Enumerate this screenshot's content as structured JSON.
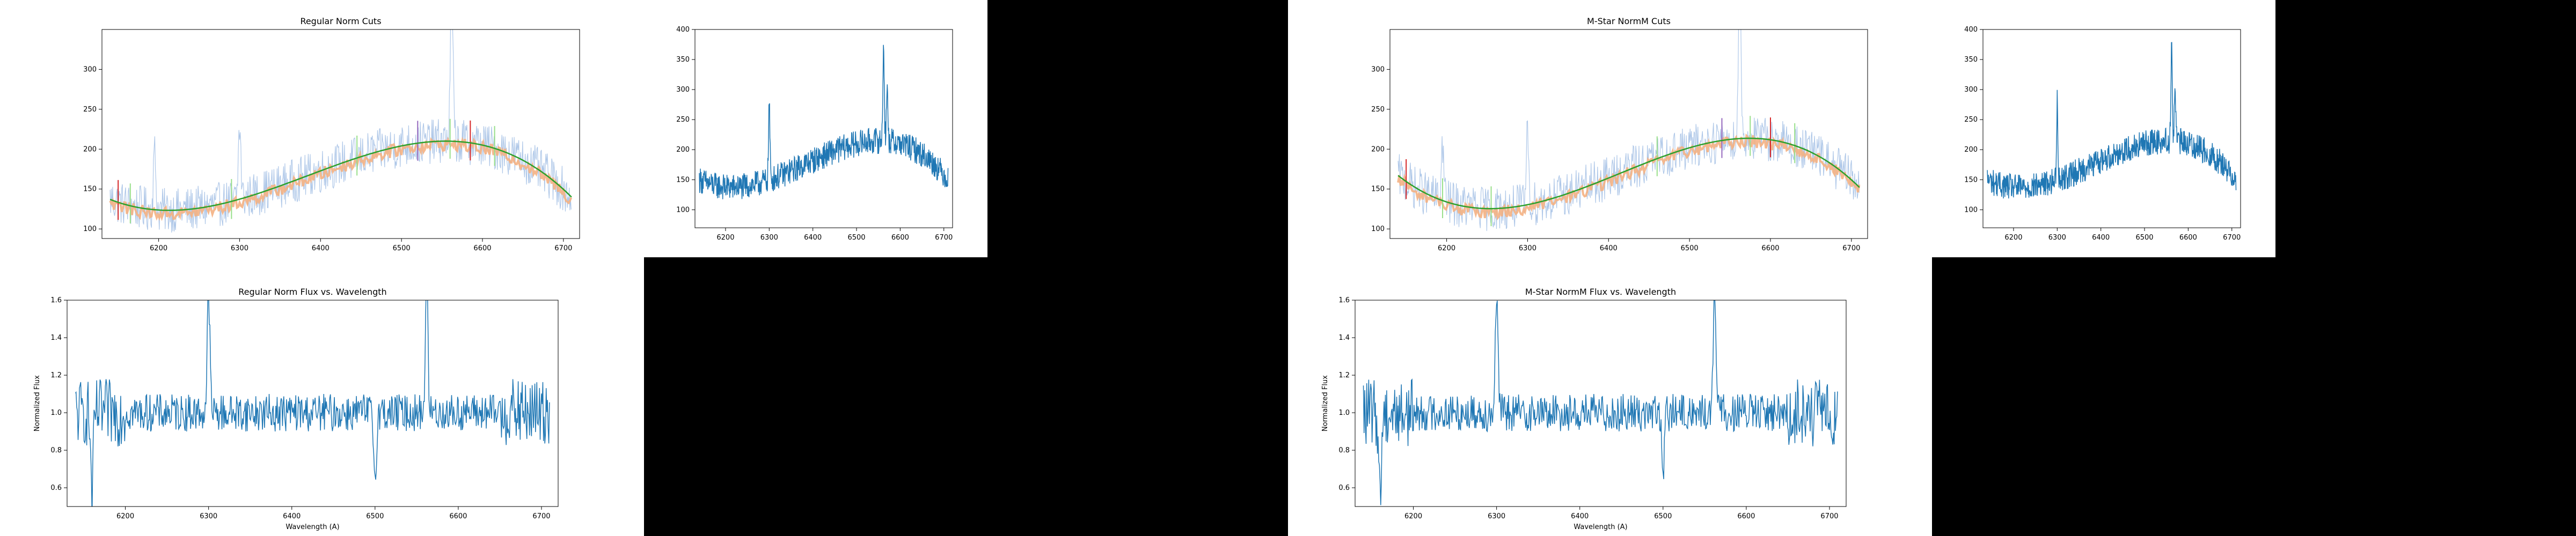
{
  "figure": {
    "background": "#ffffff",
    "panel_color": "#000000"
  },
  "colors": {
    "raw": "#aec7e8",
    "smoothed": "#f4b183",
    "fit": "#2ca02c",
    "series": "#1f77b4",
    "cut_green": "#98df8a",
    "cut_red": "#d62728",
    "cut_purple": "#9467bd"
  },
  "chart_data": [
    {
      "id": "regular-cuts",
      "type": "line",
      "title": "Regular Norm Cuts",
      "xlabel": "",
      "ylabel": "",
      "xlim": [
        6130,
        6720
      ],
      "ylim": [
        88,
        350
      ],
      "xticks": [
        6200,
        6300,
        6400,
        6500,
        6600,
        6700
      ],
      "yticks": [
        100,
        150,
        200,
        250,
        300
      ],
      "fit": {
        "kind": "cubic",
        "anchors": [
          [
            6140,
            137
          ],
          [
            6280,
            132
          ],
          [
            6550,
            210
          ],
          [
            6710,
            140
          ]
        ]
      },
      "raw_series": {
        "name": "",
        "noise": 28,
        "spikes": [
          [
            6300,
            90
          ],
          [
            6562,
            200
          ],
          [
            6195,
            70
          ]
        ]
      },
      "smoothed_series": {
        "name": "",
        "offset": -4,
        "noise": 8
      },
      "cut_markers": [
        {
          "x": 6150,
          "color": "red"
        },
        {
          "x": 6165,
          "color": "green"
        },
        {
          "x": 6290,
          "color": "green"
        },
        {
          "x": 6445,
          "color": "green"
        },
        {
          "x": 6520,
          "color": "purple"
        },
        {
          "x": 6560,
          "color": "green"
        },
        {
          "x": 6585,
          "color": "red"
        },
        {
          "x": 6615,
          "color": "green"
        }
      ]
    },
    {
      "id": "regular-flux-small",
      "type": "line",
      "title": "",
      "xlabel": "",
      "ylabel": "",
      "xlim": [
        6130,
        6720
      ],
      "ylim": [
        70,
        400
      ],
      "xticks": [
        6200,
        6300,
        6400,
        6500,
        6600,
        6700
      ],
      "yticks": [
        100,
        150,
        200,
        250,
        300,
        350,
        400
      ],
      "trend": [
        [
          6140,
          150
        ],
        [
          6280,
          145
        ],
        [
          6550,
          215
        ],
        [
          6710,
          150
        ]
      ],
      "noise": 22,
      "spikes": [
        [
          6300,
          130
        ],
        [
          6562,
          165
        ],
        [
          6570,
          90
        ]
      ]
    },
    {
      "id": "regular-norm-flux",
      "type": "line",
      "title": "Regular Norm Flux vs. Wavelength",
      "xlabel": "Wavelength (A)",
      "ylabel": "Normalized Flux",
      "xlim": [
        6130,
        6720
      ],
      "ylim": [
        0.5,
        1.6
      ],
      "xticks": [
        6200,
        6300,
        6400,
        6500,
        6600,
        6700
      ],
      "yticks": [
        0.6,
        0.8,
        1.0,
        1.2,
        1.4,
        1.6
      ],
      "baseline": 1.0,
      "noise": 0.1,
      "spikes": [
        [
          6300,
          0.65
        ],
        [
          6562,
          0.7
        ],
        [
          6160,
          -0.45
        ],
        [
          6500,
          -0.35
        ]
      ]
    },
    {
      "id": "mstar-cuts",
      "type": "line",
      "title": "M-Star NormM Cuts",
      "xlabel": "",
      "ylabel": "",
      "xlim": [
        6130,
        6720
      ],
      "ylim": [
        88,
        350
      ],
      "xticks": [
        6200,
        6300,
        6400,
        6500,
        6600,
        6700
      ],
      "yticks": [
        100,
        150,
        200,
        250,
        300
      ],
      "fit": {
        "kind": "cubic",
        "anchors": [
          [
            6140,
            167
          ],
          [
            6230,
            127
          ],
          [
            6520,
            207
          ],
          [
            6710,
            152
          ]
        ]
      },
      "raw_series": {
        "name": "",
        "noise": 28,
        "spikes": [
          [
            6300,
            90
          ],
          [
            6562,
            200
          ],
          [
            6195,
            70
          ]
        ]
      },
      "smoothed_series": {
        "name": "",
        "offset": -4,
        "noise": 8
      },
      "cut_markers": [
        {
          "x": 6150,
          "color": "red"
        },
        {
          "x": 6195,
          "color": "green"
        },
        {
          "x": 6255,
          "color": "green"
        },
        {
          "x": 6460,
          "color": "green"
        },
        {
          "x": 6540,
          "color": "purple"
        },
        {
          "x": 6575,
          "color": "green"
        },
        {
          "x": 6600,
          "color": "red"
        },
        {
          "x": 6630,
          "color": "green"
        }
      ]
    },
    {
      "id": "mstar-flux-small",
      "type": "line",
      "title": "",
      "xlabel": "",
      "ylabel": "",
      "xlim": [
        6130,
        6720
      ],
      "ylim": [
        70,
        400
      ],
      "xticks": [
        6200,
        6300,
        6400,
        6500,
        6600,
        6700
      ],
      "yticks": [
        100,
        150,
        200,
        250,
        300,
        350,
        400
      ],
      "trend": [
        [
          6140,
          150
        ],
        [
          6280,
          145
        ],
        [
          6550,
          215
        ],
        [
          6710,
          150
        ]
      ],
      "noise": 22,
      "spikes": [
        [
          6300,
          130
        ],
        [
          6562,
          165
        ],
        [
          6570,
          90
        ]
      ]
    },
    {
      "id": "mstar-norm-flux",
      "type": "line",
      "title": "M-Star NormM Flux vs. Wavelength",
      "xlabel": "Wavelength (A)",
      "ylabel": "Normalized Flux",
      "xlim": [
        6130,
        6720
      ],
      "ylim": [
        0.5,
        1.6
      ],
      "xticks": [
        6200,
        6300,
        6400,
        6500,
        6600,
        6700
      ],
      "yticks": [
        0.6,
        0.8,
        1.0,
        1.2,
        1.4,
        1.6
      ],
      "baseline": 1.0,
      "noise": 0.1,
      "spikes": [
        [
          6300,
          0.65
        ],
        [
          6562,
          0.7
        ],
        [
          6160,
          -0.45
        ],
        [
          6500,
          -0.35
        ]
      ]
    }
  ]
}
